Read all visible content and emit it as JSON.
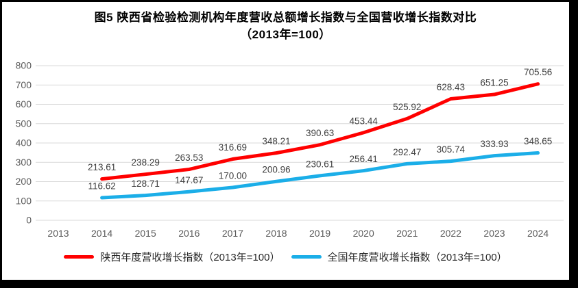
{
  "title": {
    "line1": "图5  陕西省检验检测机构年度营收总额增长指数与全国营收增长指数对比",
    "line2": "（2013年=100）"
  },
  "chart_data": {
    "type": "line",
    "title": "图5  陕西省检验检测机构年度营收总额增长指数与全国营收增长指数对比",
    "subtitle": "（2013年=100）",
    "categories": [
      "2013",
      "2014",
      "2015",
      "2016",
      "2017",
      "2018",
      "2019",
      "2020",
      "2021",
      "2022",
      "2023",
      "2024"
    ],
    "series": [
      {
        "name": "陕西年度营收增长指数（2013年=100）",
        "color": "#ff0000",
        "values": [
          null,
          213.61,
          238.29,
          263.53,
          316.69,
          348.21,
          390.63,
          453.44,
          525.92,
          628.43,
          651.25,
          705.56
        ]
      },
      {
        "name": "全国年度营收增长指数（2013年=100）",
        "color": "#1baee8",
        "values": [
          null,
          116.62,
          128.71,
          147.67,
          170.0,
          200.96,
          230.61,
          256.41,
          292.47,
          305.74,
          333.93,
          348.65
        ]
      }
    ],
    "ylim": [
      0,
      800
    ],
    "ytick_step": 100,
    "grid": true,
    "data_labels": true,
    "label_decimals": 2,
    "legend_position": "bottom",
    "xlabel": "",
    "ylabel": ""
  },
  "colors": {
    "grid": "#d9d9d9",
    "axis_text": "#595959",
    "data_label_text": "#404040",
    "title_text": "#000000",
    "legend_text": "#262626"
  }
}
